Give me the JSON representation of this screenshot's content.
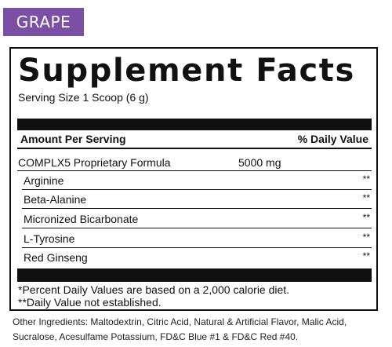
{
  "badge": {
    "flavor": "GRAPE"
  },
  "panel": {
    "title": "Supplement Facts",
    "serving_size": "Serving Size 1 Scoop (6 g)",
    "header": {
      "left": "Amount Per Serving",
      "right": "% Daily Value"
    },
    "formula": {
      "name": "COMPLX5 Proprietary Formula",
      "amount": "5000 mg"
    },
    "ingredients": [
      {
        "name": "Arginine",
        "dv": "**"
      },
      {
        "name": "Beta-Alanine",
        "dv": "**"
      },
      {
        "name": "Micronized Bicarbonate",
        "dv": "**"
      },
      {
        "name": "L-Tyrosine",
        "dv": "**"
      },
      {
        "name": "Red Ginseng",
        "dv": "**"
      }
    ],
    "footnotes": [
      "*Percent Daily Values are based on a 2,000 calorie diet.",
      "**Daily Value not established."
    ]
  },
  "other_ingredients": {
    "line1": "Other Ingredients: Maltodextrin, Citric Acid, Natural & Artificial Flavor, Malic Acid,",
    "line2": "Sucralose, Acesulfame Potassium, FD&C Blue #1 & FD&C Red #40."
  },
  "colors": {
    "badge": "#7b4fa6",
    "ink": "#111111",
    "background": "#ffffff"
  }
}
